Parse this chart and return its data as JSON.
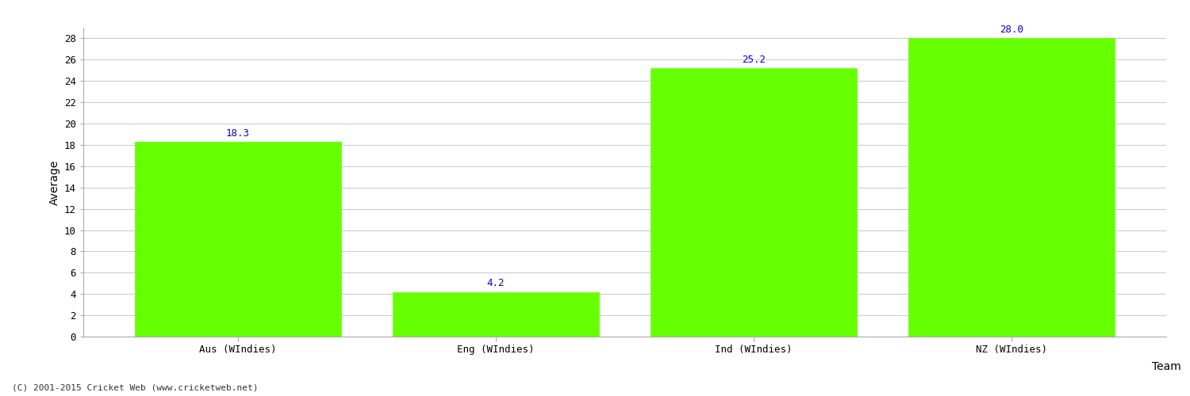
{
  "categories": [
    "Aus (WIndies)",
    "Eng (WIndies)",
    "Ind (WIndies)",
    "NZ (WIndies)"
  ],
  "values": [
    18.3,
    4.2,
    25.2,
    28.0
  ],
  "bar_color": "#66ff00",
  "bar_edge_color": "#66ff00",
  "label_color": "#0000cc",
  "xlabel": "Team",
  "ylabel": "Average",
  "ylim": [
    0,
    29
  ],
  "yticks": [
    0,
    2,
    4,
    6,
    8,
    10,
    12,
    14,
    16,
    18,
    20,
    22,
    24,
    26,
    28
  ],
  "background_color": "#ffffff",
  "grid_color": "#cccccc",
  "annotation_fontsize": 9,
  "axis_label_fontsize": 10,
  "tick_fontsize": 9,
  "footer_text": "(C) 2001-2015 Cricket Web (www.cricketweb.net)",
  "footer_fontsize": 8,
  "footer_color": "#333333"
}
